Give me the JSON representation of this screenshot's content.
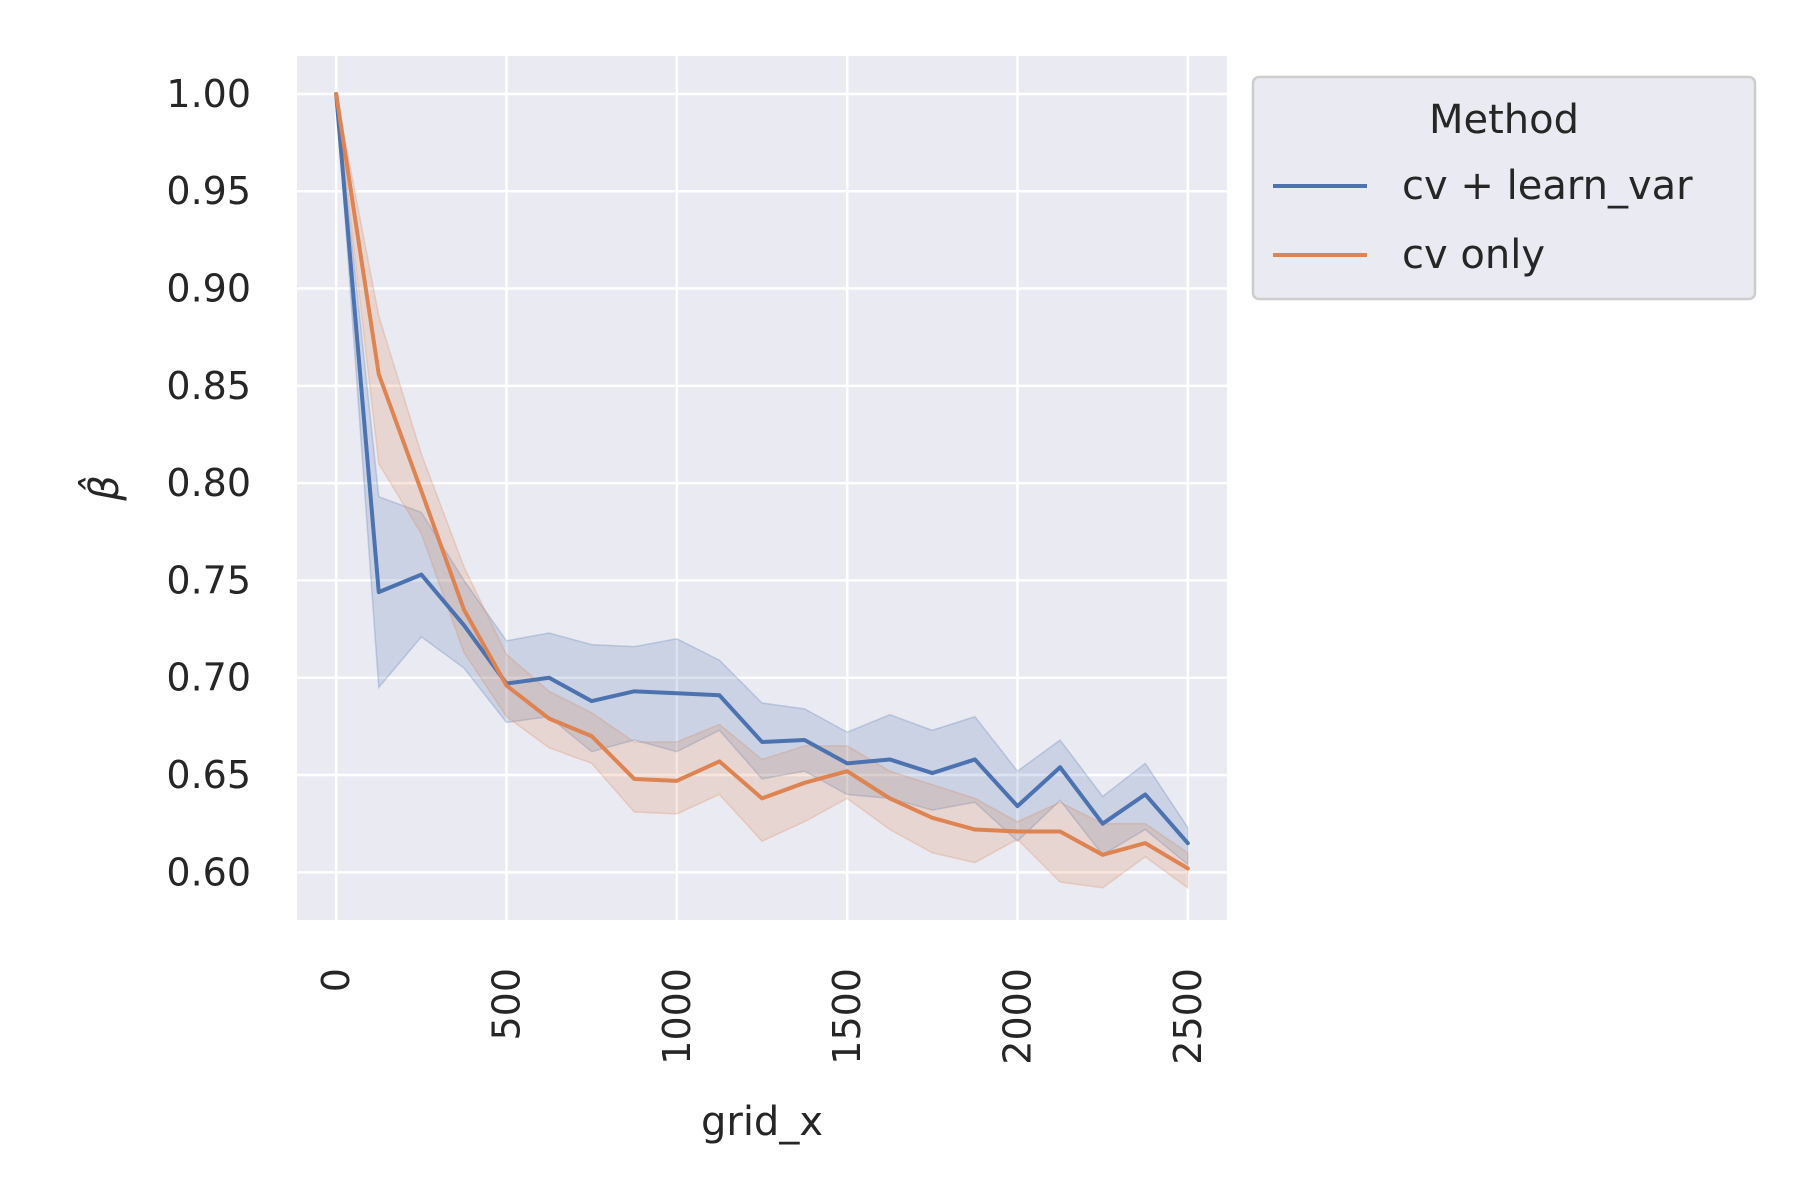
{
  "chart_data": {
    "type": "line",
    "xlabel": "grid_x",
    "ylabel": "β̂",
    "xlim": [
      -115,
      2615
    ],
    "ylim": [
      0.5755,
      1.0195
    ],
    "xticks": [
      0,
      500,
      1000,
      1500,
      2000,
      2500
    ],
    "xtick_labels": [
      "0",
      "500",
      "1000",
      "1500",
      "2000",
      "2500"
    ],
    "yticks": [
      0.6,
      0.65,
      0.7,
      0.75,
      0.8,
      0.85,
      0.9,
      0.95,
      1.0
    ],
    "ytick_labels": [
      "0.60",
      "0.65",
      "0.70",
      "0.75",
      "0.80",
      "0.85",
      "0.90",
      "0.95",
      "1.00"
    ],
    "grid": true,
    "legend": {
      "title": "Method",
      "placement": "outside-top-right"
    },
    "x": [
      0,
      125,
      250,
      375,
      500,
      625,
      750,
      875,
      1000,
      1125,
      1250,
      1375,
      1500,
      1625,
      1750,
      1875,
      2000,
      2125,
      2250,
      2375,
      2500
    ],
    "series": [
      {
        "name": "cv + learn_var",
        "color": "#4c72b0",
        "values": [
          1.0,
          0.744,
          0.753,
          0.727,
          0.697,
          0.7,
          0.688,
          0.693,
          0.692,
          0.691,
          0.667,
          0.668,
          0.656,
          0.658,
          0.651,
          0.658,
          0.634,
          0.654,
          0.625,
          0.64,
          0.615
        ],
        "ci_lower": [
          1.0,
          0.695,
          0.721,
          0.705,
          0.677,
          0.68,
          0.662,
          0.668,
          0.662,
          0.673,
          0.648,
          0.652,
          0.64,
          0.638,
          0.632,
          0.636,
          0.616,
          0.637,
          0.609,
          0.622,
          0.604
        ],
        "ci_upper": [
          1.0,
          0.793,
          0.785,
          0.75,
          0.719,
          0.723,
          0.717,
          0.716,
          0.72,
          0.709,
          0.687,
          0.684,
          0.672,
          0.681,
          0.673,
          0.68,
          0.652,
          0.668,
          0.639,
          0.656,
          0.623
        ]
      },
      {
        "name": "cv only",
        "color": "#dd8452",
        "values": [
          1.0,
          0.856,
          0.796,
          0.735,
          0.696,
          0.679,
          0.67,
          0.648,
          0.647,
          0.657,
          0.638,
          0.646,
          0.652,
          0.638,
          0.628,
          0.622,
          0.621,
          0.621,
          0.609,
          0.615,
          0.602
        ],
        "ci_lower": [
          1.0,
          0.81,
          0.774,
          0.713,
          0.68,
          0.664,
          0.656,
          0.631,
          0.63,
          0.64,
          0.616,
          0.626,
          0.638,
          0.622,
          0.61,
          0.605,
          0.617,
          0.595,
          0.592,
          0.608,
          0.592
        ],
        "ci_upper": [
          1.0,
          0.886,
          0.815,
          0.757,
          0.712,
          0.693,
          0.682,
          0.667,
          0.667,
          0.676,
          0.658,
          0.665,
          0.665,
          0.652,
          0.645,
          0.638,
          0.626,
          0.636,
          0.625,
          0.625,
          0.61
        ]
      }
    ]
  }
}
